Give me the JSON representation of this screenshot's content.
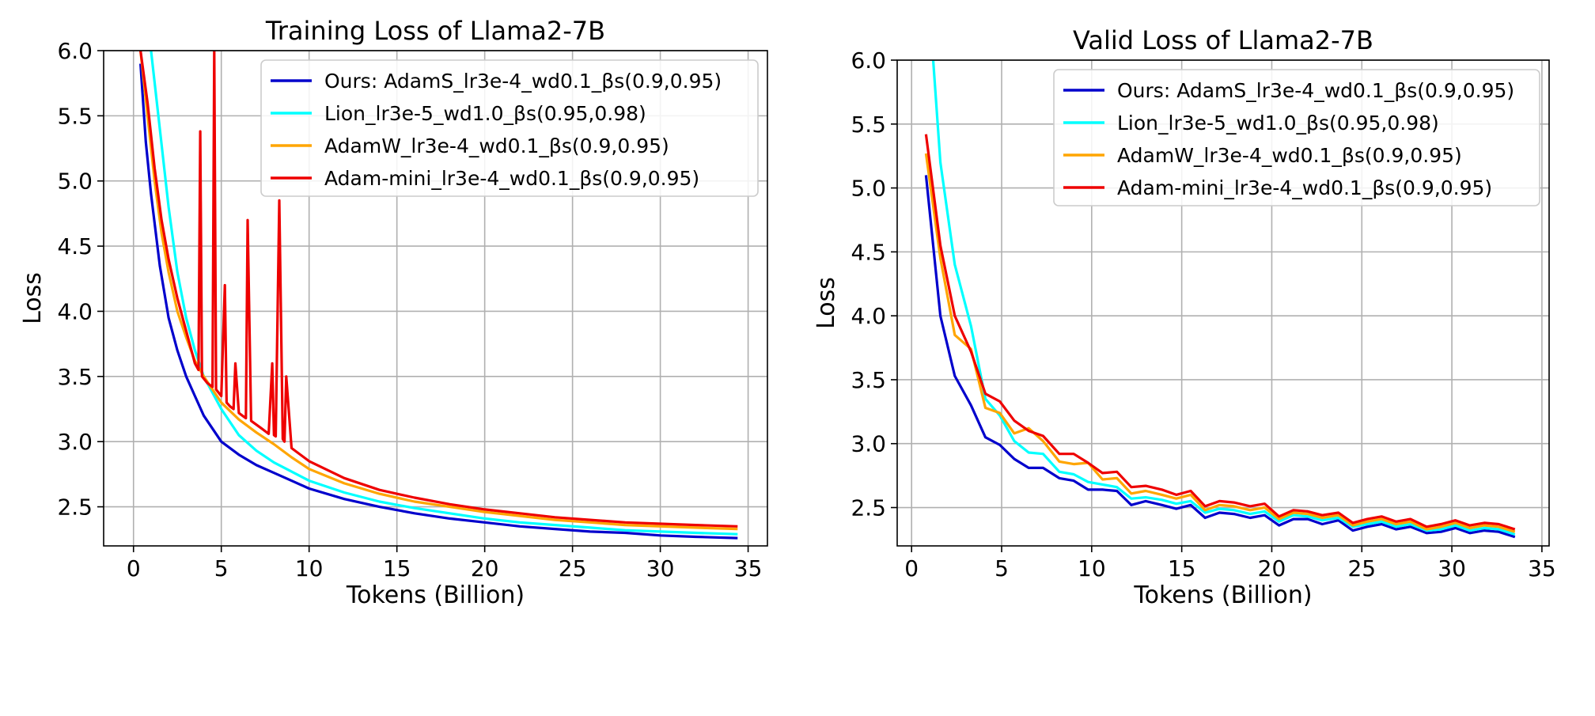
{
  "chart_data": [
    {
      "type": "line",
      "title": "Training Loss of Llama2-7B",
      "xlabel": "Tokens (Billion)",
      "ylabel": "Loss",
      "xlim": [
        -1.7,
        36.1
      ],
      "ylim": [
        2.2,
        6.0
      ],
      "xticks": [
        0,
        5,
        10,
        15,
        20,
        25,
        30,
        35
      ],
      "yticks": [
        2.5,
        3.0,
        3.5,
        4.0,
        4.5,
        5.0,
        5.5,
        6.0
      ],
      "grid": true,
      "legend": "top-right",
      "series": [
        {
          "name": "Ours: AdamS_lr3e-4_wd0.1_βs(0.9,0.95)",
          "color": "#0000cc",
          "x": [
            0.4,
            0.7,
            1.0,
            1.5,
            2.0,
            2.5,
            3.0,
            3.5,
            4.0,
            5.0,
            6.0,
            7.0,
            8.0,
            9.0,
            10.0,
            12.0,
            14.0,
            16.0,
            18.0,
            20.0,
            22.0,
            24.0,
            26.0,
            28.0,
            30.0,
            32.0,
            34.4
          ],
          "y": [
            5.9,
            5.3,
            4.9,
            4.35,
            3.95,
            3.7,
            3.5,
            3.35,
            3.2,
            3.0,
            2.9,
            2.82,
            2.76,
            2.7,
            2.64,
            2.56,
            2.5,
            2.45,
            2.41,
            2.38,
            2.35,
            2.33,
            2.31,
            2.3,
            2.28,
            2.27,
            2.26
          ]
        },
        {
          "name": "Lion_lr3e-5_wd1.0_βs(0.95,0.98)",
          "color": "#00ffff",
          "x": [
            1.0,
            1.5,
            2.0,
            2.5,
            3.0,
            3.5,
            4.0,
            5.0,
            6.0,
            7.0,
            8.0,
            9.0,
            10.0,
            12.0,
            14.0,
            16.0,
            18.0,
            20.0,
            22.0,
            24.0,
            26.0,
            28.0,
            30.0,
            32.0,
            34.4
          ],
          "y": [
            6.0,
            5.4,
            4.8,
            4.3,
            3.95,
            3.7,
            3.5,
            3.25,
            3.05,
            2.93,
            2.84,
            2.77,
            2.7,
            2.61,
            2.54,
            2.49,
            2.45,
            2.41,
            2.38,
            2.36,
            2.34,
            2.32,
            2.31,
            2.3,
            2.29
          ]
        },
        {
          "name": "AdamW_lr3e-4_wd0.1_βs(0.9,0.95)",
          "color": "#ffa500",
          "x": [
            0.4,
            0.8,
            1.2,
            1.6,
            2.0,
            2.5,
            3.0,
            3.5,
            4.0,
            5.0,
            6.0,
            7.0,
            8.0,
            9.0,
            10.0,
            12.0,
            14.0,
            16.0,
            18.0,
            20.0,
            22.0,
            24.0,
            26.0,
            28.0,
            30.0,
            32.0,
            34.4
          ],
          "y": [
            6.0,
            5.5,
            5.0,
            4.6,
            4.3,
            4.0,
            3.8,
            3.62,
            3.5,
            3.3,
            3.17,
            3.07,
            2.98,
            2.88,
            2.79,
            2.68,
            2.6,
            2.54,
            2.5,
            2.46,
            2.43,
            2.4,
            2.38,
            2.36,
            2.35,
            2.34,
            2.33
          ]
        },
        {
          "name": "Adam-mini_lr3e-4_wd0.1_βs(0.9,0.95)",
          "color": "#ee0000",
          "x": [
            0.4,
            0.8,
            1.2,
            1.6,
            2.0,
            2.5,
            3.0,
            3.5,
            3.7,
            3.8,
            3.9,
            4.2,
            4.5,
            4.6,
            4.7,
            5.0,
            5.2,
            5.3,
            5.5,
            5.7,
            5.8,
            6.0,
            6.2,
            6.4,
            6.5,
            6.7,
            7.0,
            7.3,
            7.5,
            7.7,
            7.9,
            8.0,
            8.1,
            8.3,
            8.5,
            8.6,
            8.7,
            9.0,
            10.0,
            12.0,
            14.0,
            16.0,
            18.0,
            20.0,
            22.0,
            24.0,
            26.0,
            28.0,
            30.0,
            32.0,
            34.4
          ],
          "y": [
            6.0,
            5.6,
            5.1,
            4.7,
            4.4,
            4.1,
            3.85,
            3.6,
            3.55,
            5.38,
            3.5,
            3.45,
            3.42,
            6.0,
            3.4,
            3.35,
            4.2,
            3.3,
            3.27,
            3.25,
            3.6,
            3.22,
            3.2,
            3.18,
            4.7,
            3.16,
            3.13,
            3.1,
            3.08,
            3.06,
            3.6,
            3.05,
            3.04,
            4.85,
            3.02,
            3.0,
            3.5,
            2.95,
            2.85,
            2.72,
            2.63,
            2.57,
            2.52,
            2.48,
            2.45,
            2.42,
            2.4,
            2.38,
            2.37,
            2.36,
            2.35
          ]
        }
      ]
    },
    {
      "type": "line",
      "title": "Valid Loss of Llama2-7B",
      "xlabel": "Tokens (Billion)",
      "ylabel": "Loss",
      "xlim": [
        -0.8,
        35.4
      ],
      "ylim": [
        2.2,
        6.0
      ],
      "xticks": [
        0,
        5,
        10,
        15,
        20,
        25,
        30,
        35
      ],
      "yticks": [
        2.5,
        3.0,
        3.5,
        4.0,
        4.5,
        5.0,
        5.5,
        6.0
      ],
      "grid": true,
      "legend": "top-right",
      "series": [
        {
          "name": "Ours: AdamS_lr3e-4_wd0.1_βs(0.9,0.95)",
          "color": "#0000cc",
          "x": [
            0.8,
            1.6,
            2.4,
            3.3,
            4.1,
            4.9,
            5.7,
            6.5,
            7.3,
            8.2,
            9.0,
            9.8,
            10.6,
            11.4,
            12.2,
            13.0,
            13.9,
            14.7,
            15.5,
            16.3,
            17.1,
            17.9,
            18.8,
            19.6,
            20.4,
            21.2,
            22.0,
            22.8,
            23.7,
            24.5,
            25.3,
            26.1,
            26.9,
            27.7,
            28.6,
            29.4,
            30.2,
            31.0,
            31.8,
            32.6,
            33.5
          ],
          "y": [
            5.1,
            4.0,
            3.53,
            3.3,
            3.05,
            2.99,
            2.88,
            2.81,
            2.81,
            2.73,
            2.71,
            2.64,
            2.64,
            2.63,
            2.52,
            2.55,
            2.52,
            2.49,
            2.52,
            2.42,
            2.46,
            2.45,
            2.42,
            2.44,
            2.36,
            2.41,
            2.41,
            2.37,
            2.4,
            2.32,
            2.35,
            2.37,
            2.33,
            2.35,
            2.3,
            2.31,
            2.34,
            2.3,
            2.32,
            2.31,
            2.27
          ]
        },
        {
          "name": "Lion_lr3e-5_wd1.0_βs(0.95,0.98)",
          "color": "#00ffff",
          "x": [
            1.2,
            1.6,
            2.4,
            3.3,
            4.1,
            4.9,
            5.7,
            6.5,
            7.3,
            8.2,
            9.0,
            9.8,
            10.6,
            11.4,
            12.2,
            13.0,
            13.9,
            14.7,
            15.5,
            16.3,
            17.1,
            17.9,
            18.8,
            19.6,
            20.4,
            21.2,
            22.0,
            22.8,
            23.7,
            24.5,
            25.3,
            26.1,
            26.9,
            27.7,
            28.6,
            29.4,
            30.2,
            31.0,
            31.8,
            32.6,
            33.5
          ],
          "y": [
            6.0,
            5.2,
            4.4,
            3.92,
            3.35,
            3.22,
            3.02,
            2.93,
            2.92,
            2.78,
            2.76,
            2.7,
            2.68,
            2.66,
            2.57,
            2.58,
            2.56,
            2.53,
            2.55,
            2.46,
            2.49,
            2.48,
            2.45,
            2.47,
            2.39,
            2.44,
            2.43,
            2.4,
            2.42,
            2.35,
            2.37,
            2.39,
            2.35,
            2.37,
            2.32,
            2.33,
            2.36,
            2.32,
            2.34,
            2.33,
            2.29
          ]
        },
        {
          "name": "AdamW_lr3e-4_wd0.1_βs(0.9,0.95)",
          "color": "#ffa500",
          "x": [
            0.8,
            1.6,
            2.4,
            3.3,
            4.1,
            4.9,
            5.7,
            6.5,
            7.3,
            8.2,
            9.0,
            9.8,
            10.6,
            11.4,
            12.2,
            13.0,
            13.9,
            14.7,
            15.5,
            16.3,
            17.1,
            17.9,
            18.8,
            19.6,
            20.4,
            21.2,
            22.0,
            22.8,
            23.7,
            24.5,
            25.3,
            26.1,
            26.9,
            27.7,
            28.6,
            29.4,
            30.2,
            31.0,
            31.8,
            32.6,
            33.5
          ],
          "y": [
            5.27,
            4.45,
            3.85,
            3.74,
            3.28,
            3.24,
            3.08,
            3.12,
            3.02,
            2.86,
            2.84,
            2.85,
            2.72,
            2.73,
            2.61,
            2.63,
            2.6,
            2.57,
            2.6,
            2.48,
            2.52,
            2.51,
            2.48,
            2.5,
            2.41,
            2.46,
            2.45,
            2.42,
            2.44,
            2.36,
            2.39,
            2.41,
            2.37,
            2.39,
            2.33,
            2.35,
            2.38,
            2.34,
            2.36,
            2.35,
            2.31
          ]
        },
        {
          "name": "Adam-mini_lr3e-4_wd0.1_βs(0.9,0.95)",
          "color": "#ee0000",
          "x": [
            0.8,
            1.6,
            2.4,
            3.3,
            4.1,
            4.9,
            5.7,
            6.5,
            7.3,
            8.2,
            9.0,
            9.8,
            10.6,
            11.4,
            12.2,
            13.0,
            13.9,
            14.7,
            15.5,
            16.3,
            17.1,
            17.9,
            18.8,
            19.6,
            20.4,
            21.2,
            22.0,
            22.8,
            23.7,
            24.5,
            25.3,
            26.1,
            26.9,
            27.7,
            28.6,
            29.4,
            30.2,
            31.0,
            31.8,
            32.6,
            33.5
          ],
          "y": [
            5.42,
            4.55,
            4.0,
            3.72,
            3.39,
            3.33,
            3.18,
            3.1,
            3.06,
            2.92,
            2.92,
            2.85,
            2.77,
            2.78,
            2.66,
            2.67,
            2.64,
            2.6,
            2.63,
            2.51,
            2.55,
            2.54,
            2.51,
            2.53,
            2.43,
            2.48,
            2.47,
            2.44,
            2.46,
            2.38,
            2.41,
            2.43,
            2.39,
            2.41,
            2.35,
            2.37,
            2.4,
            2.36,
            2.38,
            2.37,
            2.33
          ]
        }
      ]
    }
  ]
}
